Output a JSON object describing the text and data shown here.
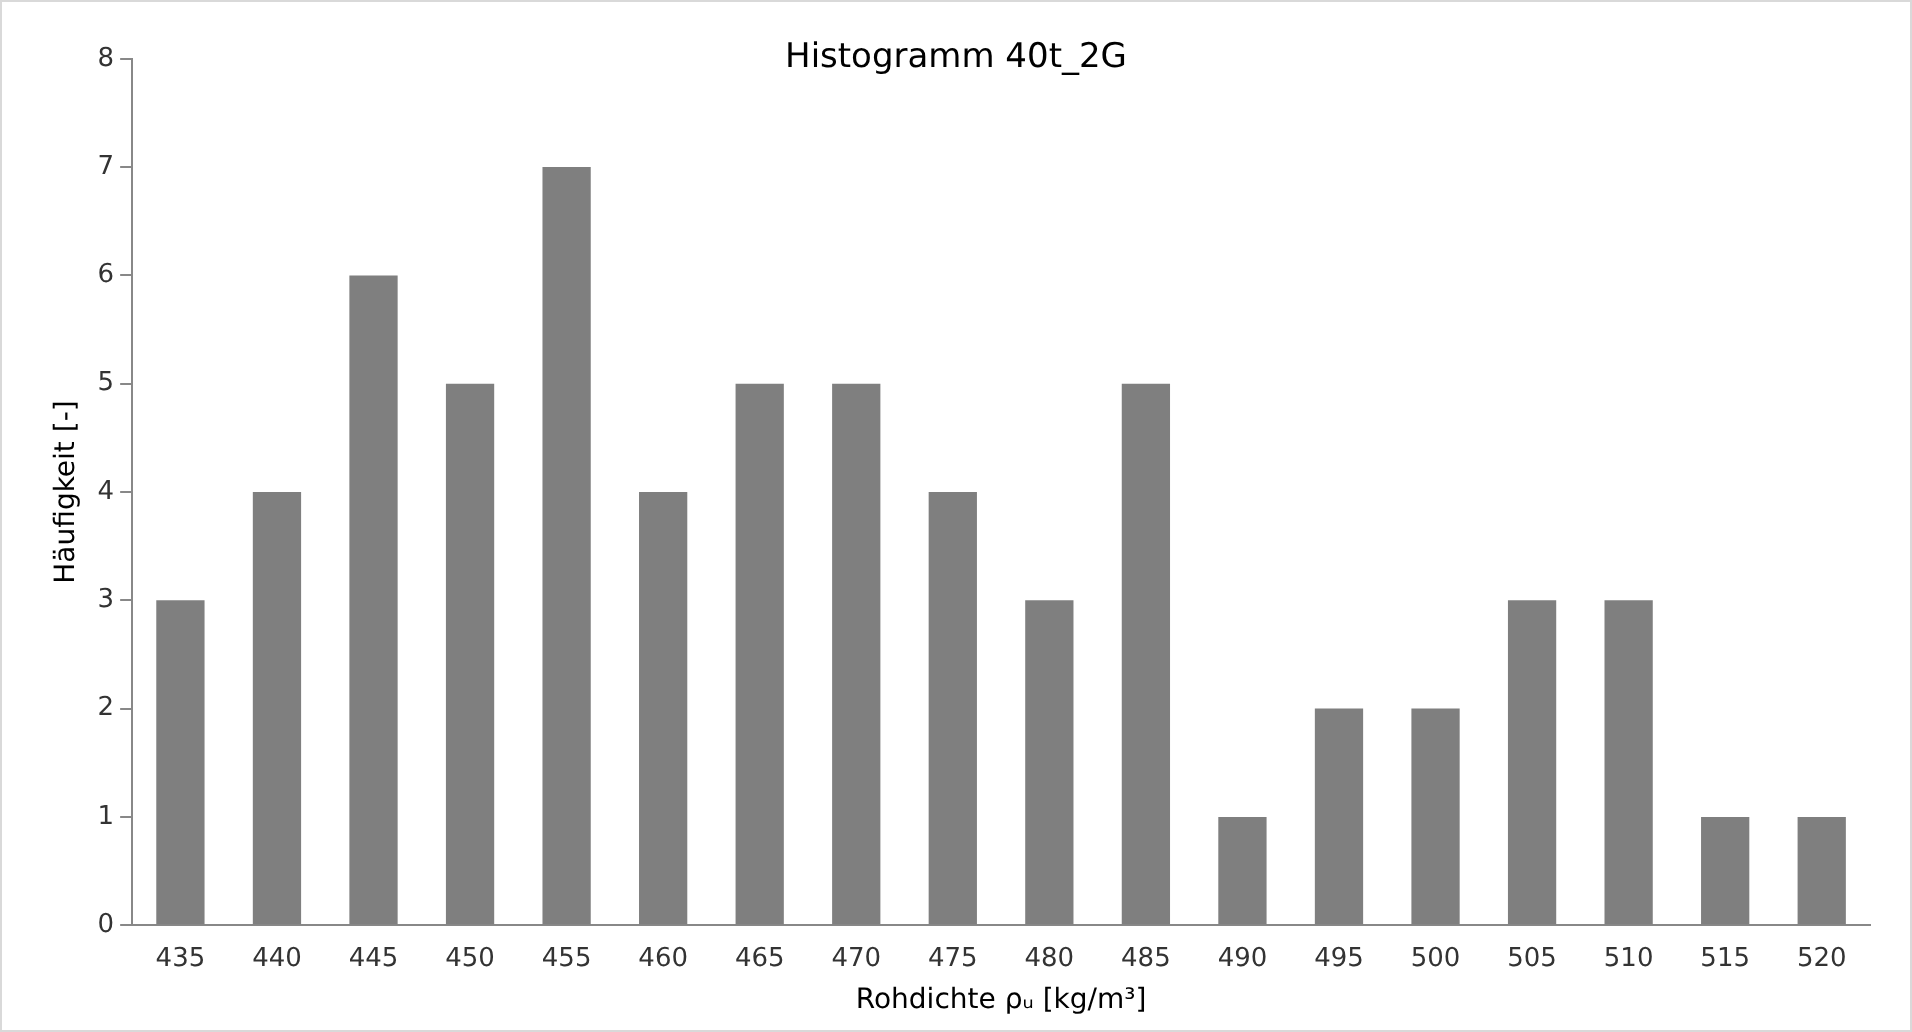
{
  "chart_data": {
    "type": "bar",
    "title": "Histogramm 40t_2G",
    "xlabel": "Rohdichte ρᵤ [kg/m³]",
    "ylabel": "Häufigkeit [-]",
    "categories": [
      "435",
      "440",
      "445",
      "450",
      "455",
      "460",
      "465",
      "470",
      "475",
      "480",
      "485",
      "490",
      "495",
      "500",
      "505",
      "510",
      "515",
      "520"
    ],
    "values": [
      3,
      4,
      6,
      5,
      7,
      4,
      5,
      5,
      4,
      3,
      5,
      1,
      2,
      2,
      3,
      3,
      1,
      1
    ],
    "color": "#7f7f7f",
    "ylim": [
      0,
      8
    ],
    "yticks": [
      0,
      1,
      2,
      3,
      4,
      5,
      6,
      7,
      8
    ],
    "grid": false,
    "legend": false
  }
}
